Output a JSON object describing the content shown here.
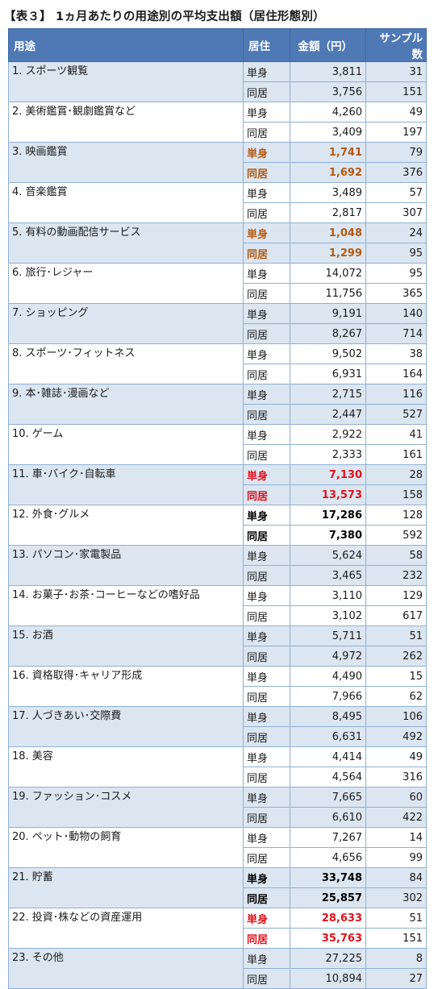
{
  "title": "【表３】 1ヵ月あたりの用途別の平均支出額（居住形態別）",
  "headers": {
    "use": "用途",
    "living": "居住",
    "amount": "金額（円）",
    "sample": "サンプル数"
  },
  "categories": [
    {
      "name": "1. スポーツ観覧",
      "rows": [
        {
          "type": "単身",
          "amount": "3,811",
          "n": "31"
        },
        {
          "type": "同居",
          "amount": "3,756",
          "n": "151"
        }
      ]
    },
    {
      "name": "2. 美術鑑賞･観劇鑑賞など",
      "rows": [
        {
          "type": "単身",
          "amount": "4,260",
          "n": "49"
        },
        {
          "type": "同居",
          "amount": "3,409",
          "n": "197"
        }
      ]
    },
    {
      "name": "3. 映画鑑賞",
      "highlight": "brown",
      "rows": [
        {
          "type": "単身",
          "amount": "1,741",
          "n": "79"
        },
        {
          "type": "同居",
          "amount": "1,692",
          "n": "376"
        }
      ]
    },
    {
      "name": "4. 音楽鑑賞",
      "rows": [
        {
          "type": "単身",
          "amount": "3,489",
          "n": "57"
        },
        {
          "type": "同居",
          "amount": "2,817",
          "n": "307"
        }
      ]
    },
    {
      "name": "5. 有料の動画配信サービス",
      "highlight": "brown",
      "rows": [
        {
          "type": "単身",
          "amount": "1,048",
          "n": "24"
        },
        {
          "type": "同居",
          "amount": "1,299",
          "n": "95"
        }
      ]
    },
    {
      "name": "6. 旅行･レジャー",
      "rows": [
        {
          "type": "単身",
          "amount": "14,072",
          "n": "95"
        },
        {
          "type": "同居",
          "amount": "11,756",
          "n": "365"
        }
      ]
    },
    {
      "name": "7. ショッピング",
      "rows": [
        {
          "type": "単身",
          "amount": "9,191",
          "n": "140"
        },
        {
          "type": "同居",
          "amount": "8,267",
          "n": "714"
        }
      ]
    },
    {
      "name": "8. スポーツ･フィットネス",
      "rows": [
        {
          "type": "単身",
          "amount": "9,502",
          "n": "38"
        },
        {
          "type": "同居",
          "amount": "6,931",
          "n": "164"
        }
      ]
    },
    {
      "name": "9. 本･雑誌･漫画など",
      "rows": [
        {
          "type": "単身",
          "amount": "2,715",
          "n": "116"
        },
        {
          "type": "同居",
          "amount": "2,447",
          "n": "527"
        }
      ]
    },
    {
      "name": "10. ゲーム",
      "rows": [
        {
          "type": "単身",
          "amount": "2,922",
          "n": "41"
        },
        {
          "type": "同居",
          "amount": "2,333",
          "n": "161"
        }
      ]
    },
    {
      "name": "11. 車･バイク･自転車",
      "highlight": "red",
      "rows": [
        {
          "type": "単身",
          "amount": "7,130",
          "n": "28"
        },
        {
          "type": "同居",
          "amount": "13,573",
          "n": "158"
        }
      ]
    },
    {
      "name": "12. 外食･グルメ",
      "highlight": "bold",
      "rows": [
        {
          "type": "単身",
          "amount": "17,286",
          "n": "128"
        },
        {
          "type": "同居",
          "amount": "7,380",
          "n": "592"
        }
      ]
    },
    {
      "name": "13. パソコン･家電製品",
      "rows": [
        {
          "type": "単身",
          "amount": "5,624",
          "n": "58"
        },
        {
          "type": "同居",
          "amount": "3,465",
          "n": "232"
        }
      ]
    },
    {
      "name": "14. お菓子･お茶･コーヒーなどの嗜好品",
      "rows": [
        {
          "type": "単身",
          "amount": "3,110",
          "n": "129"
        },
        {
          "type": "同居",
          "amount": "3,102",
          "n": "617"
        }
      ]
    },
    {
      "name": "15. お酒",
      "rows": [
        {
          "type": "単身",
          "amount": "5,711",
          "n": "51"
        },
        {
          "type": "同居",
          "amount": "4,972",
          "n": "262"
        }
      ]
    },
    {
      "name": "16. 資格取得･キャリア形成",
      "rows": [
        {
          "type": "単身",
          "amount": "4,490",
          "n": "15"
        },
        {
          "type": "同居",
          "amount": "7,966",
          "n": "62"
        }
      ]
    },
    {
      "name": "17. 人づきあい･交際費",
      "rows": [
        {
          "type": "単身",
          "amount": "8,495",
          "n": "106"
        },
        {
          "type": "同居",
          "amount": "6,631",
          "n": "492"
        }
      ]
    },
    {
      "name": "18. 美容",
      "rows": [
        {
          "type": "単身",
          "amount": "4,414",
          "n": "49"
        },
        {
          "type": "同居",
          "amount": "4,564",
          "n": "316"
        }
      ]
    },
    {
      "name": "19. ファッション･コスメ",
      "rows": [
        {
          "type": "単身",
          "amount": "7,665",
          "n": "60"
        },
        {
          "type": "同居",
          "amount": "6,610",
          "n": "422"
        }
      ]
    },
    {
      "name": "20. ペット･動物の飼育",
      "rows": [
        {
          "type": "単身",
          "amount": "7,267",
          "n": "14"
        },
        {
          "type": "同居",
          "amount": "4,656",
          "n": "99"
        }
      ]
    },
    {
      "name": "21. 貯蓄",
      "highlight": "bold",
      "rows": [
        {
          "type": "単身",
          "amount": "33,748",
          "n": "84"
        },
        {
          "type": "同居",
          "amount": "25,857",
          "n": "302"
        }
      ]
    },
    {
      "name": "22. 投資･株などの資産運用",
      "highlight": "red",
      "rows": [
        {
          "type": "単身",
          "amount": "28,633",
          "n": "51"
        },
        {
          "type": "同居",
          "amount": "35,763",
          "n": "151"
        }
      ]
    },
    {
      "name": "23. その他",
      "rows": [
        {
          "type": "単身",
          "amount": "27,225",
          "n": "8"
        },
        {
          "type": "同居",
          "amount": "10,894",
          "n": "27"
        }
      ]
    }
  ]
}
